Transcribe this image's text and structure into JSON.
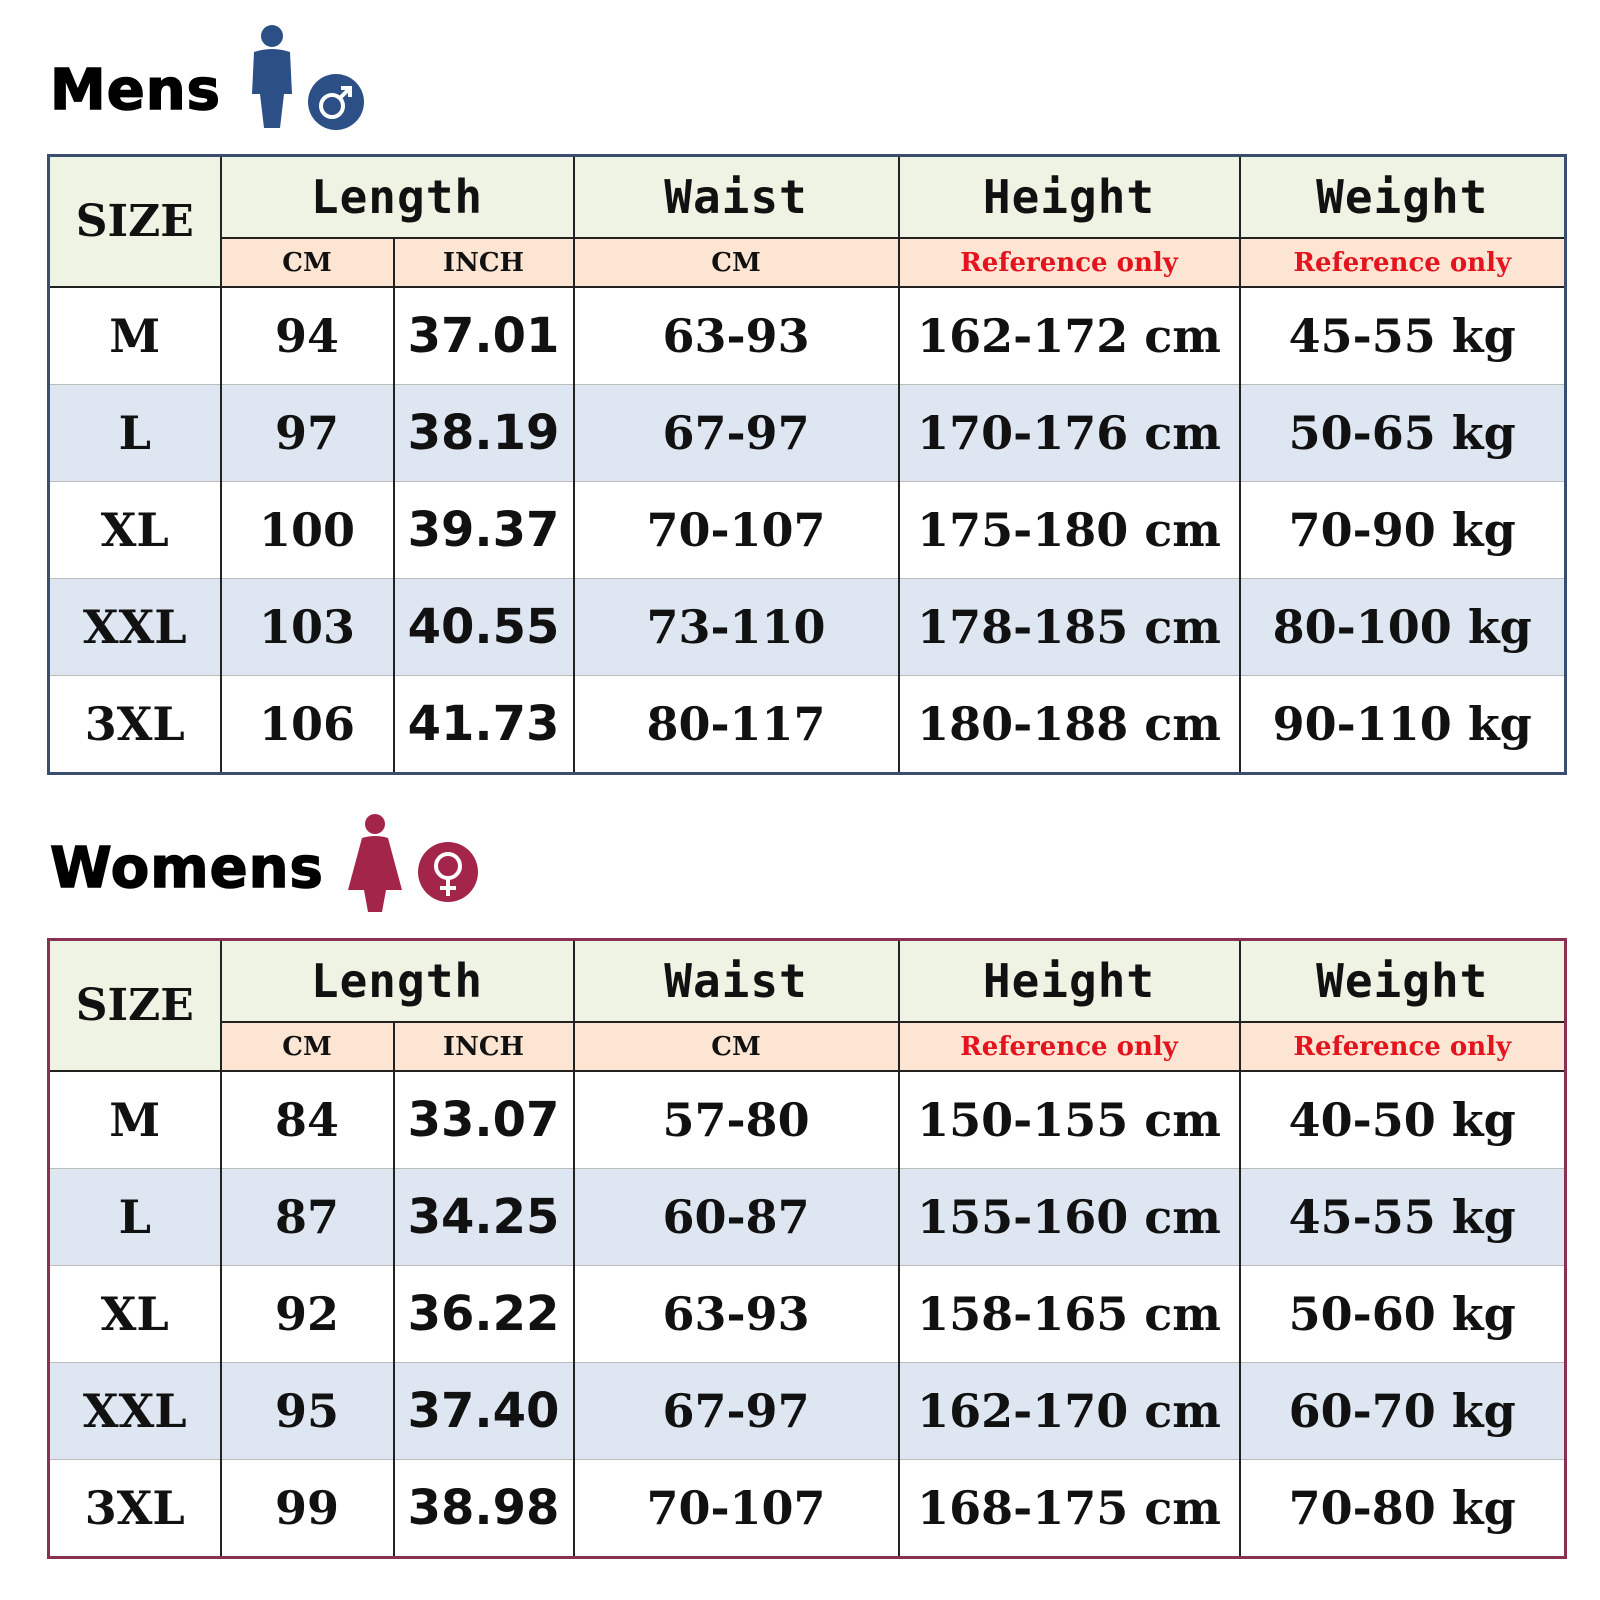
{
  "sections": [
    {
      "title": "Mens",
      "table": {
        "header": [
          "SIZE",
          "Length",
          "Waist",
          "Height",
          "Weight"
        ],
        "subheader": [
          "CM",
          "INCH",
          "CM",
          "Reference only",
          "Reference only"
        ],
        "rows": [
          [
            "M",
            "94",
            "37.01",
            "63-93",
            "162-172 cm",
            "45-55 kg"
          ],
          [
            "L",
            "97",
            "38.19",
            "67-97",
            "170-176 cm",
            "50-65 kg"
          ],
          [
            "XL",
            "100",
            "39.37",
            "70-107",
            "175-180 cm",
            "70-90 kg"
          ],
          [
            "XXL",
            "103",
            "40.55",
            "73-110",
            "178-185 cm",
            "80-100 kg"
          ],
          [
            "3XL",
            "106",
            "41.73",
            "80-117",
            "180-188 cm",
            "90-110 kg"
          ]
        ]
      }
    },
    {
      "title": "Womens",
      "table": {
        "header": [
          "SIZE",
          "Length",
          "Waist",
          "Height",
          "Weight"
        ],
        "subheader": [
          "CM",
          "INCH",
          "CM",
          "Reference only",
          "Reference only"
        ],
        "rows": [
          [
            "M",
            "84",
            "33.07",
            "57-80",
            "150-155 cm",
            "40-50 kg"
          ],
          [
            "L",
            "87",
            "34.25",
            "60-87",
            "155-160 cm",
            "45-55 kg"
          ],
          [
            "XL",
            "92",
            "36.22",
            "63-93",
            "158-165 cm",
            "50-60 kg"
          ],
          [
            "XXL",
            "95",
            "37.40",
            "67-97",
            "162-170 cm",
            "60-70 kg"
          ],
          [
            "3XL",
            "99",
            "38.98",
            "70-107",
            "168-175 cm",
            "70-80 kg"
          ]
        ]
      }
    }
  ]
}
